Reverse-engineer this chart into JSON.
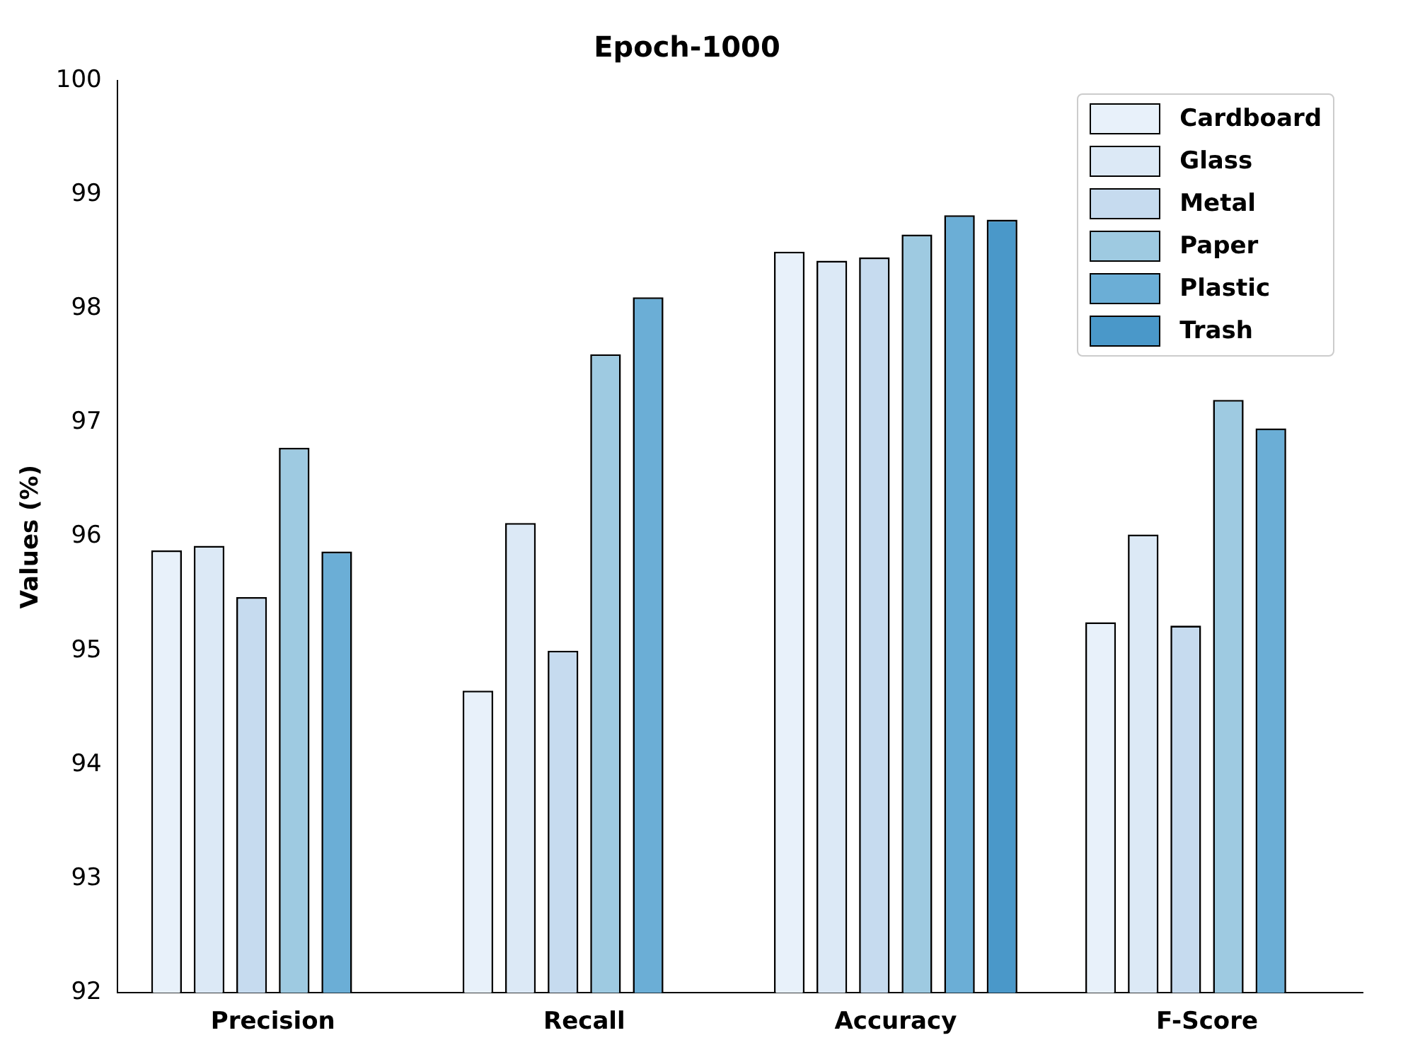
{
  "chart_data": {
    "type": "bar",
    "title": "Epoch-1000",
    "ylabel": "Values (%)",
    "categories": [
      "Precision",
      "Recall",
      "Accuracy",
      "F-Score"
    ],
    "series": [
      {
        "name": "Cardboard",
        "color": "#e8f1fa",
        "values": [
          95.88,
          94.65,
          98.5,
          95.25
        ]
      },
      {
        "name": "Glass",
        "color": "#dce9f6",
        "values": [
          95.92,
          96.12,
          98.42,
          96.02
        ]
      },
      {
        "name": "Metal",
        "color": "#c6dbef",
        "values": [
          95.47,
          95.0,
          98.45,
          95.22
        ]
      },
      {
        "name": "Paper",
        "color": "#9ecae1",
        "values": [
          96.78,
          97.6,
          98.65,
          97.2
        ]
      },
      {
        "name": "Plastic",
        "color": "#6baed6",
        "values": [
          95.87,
          98.1,
          98.82,
          96.95
        ]
      },
      {
        "name": "Trash",
        "color": "#4a98c9",
        "values": [
          null,
          null,
          98.78,
          null
        ]
      }
    ],
    "ylim": [
      92,
      100
    ],
    "yticks": [
      92,
      93,
      94,
      95,
      96,
      97,
      98,
      99,
      100
    ],
    "grid": false,
    "legend": "top right"
  }
}
